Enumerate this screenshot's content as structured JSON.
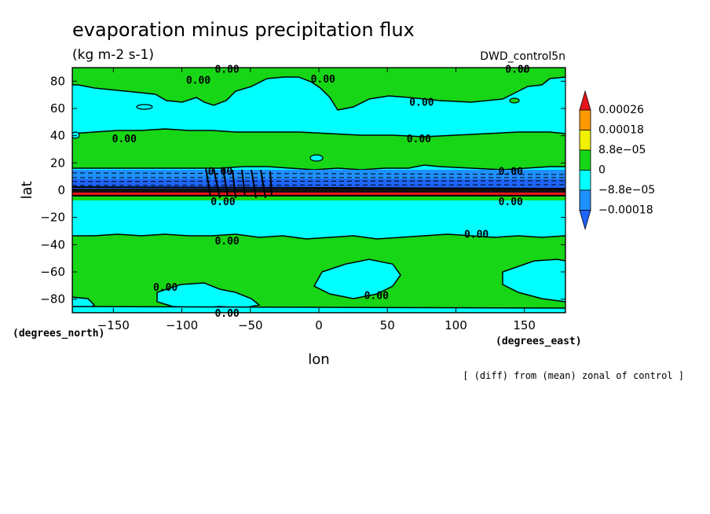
{
  "chart_data": {
    "type": "contour",
    "title": "evaporation minus precipitation flux",
    "units": "(kg m-2 s-1)",
    "dataset": "DWD_control5n",
    "xlabel": "lon",
    "ylabel": "lat",
    "x_units": "(degrees_east)",
    "y_units": "(degrees_north)",
    "xlim": [
      -180,
      180
    ],
    "ylim": [
      -90,
      90
    ],
    "xticks": [
      -150,
      -100,
      -50,
      0,
      50,
      100,
      150
    ],
    "yticks": [
      80,
      60,
      40,
      20,
      0,
      -20,
      -40,
      -60,
      -80
    ],
    "note": "[ (diff) from (mean) zonal of control ]",
    "contour_label": "0.00",
    "contour_label_positions": [
      {
        "lon": -67,
        "lat": 89
      },
      {
        "lon": -88,
        "lat": 81
      },
      {
        "lon": 3,
        "lat": 82
      },
      {
        "lon": 145,
        "lat": 89
      },
      {
        "lon": 75,
        "lat": 65
      },
      {
        "lon": -142,
        "lat": 38
      },
      {
        "lon": 73,
        "lat": 38
      },
      {
        "lon": -72,
        "lat": 14
      },
      {
        "lon": 140,
        "lat": 14
      },
      {
        "lon": -70,
        "lat": -8
      },
      {
        "lon": 140,
        "lat": -8
      },
      {
        "lon": 115,
        "lat": -32
      },
      {
        "lon": -67,
        "lat": -37
      },
      {
        "lon": -112,
        "lat": -71
      },
      {
        "lon": 42,
        "lat": -77
      },
      {
        "lon": -67,
        "lat": -90
      }
    ],
    "bands": [
      {
        "lat_from": 90,
        "lat_to": 15,
        "level": "0 to 8.8e-05 (mostly)"
      },
      {
        "lat_from": 15,
        "lat_to": 6,
        "level": "-8.8e-05 to 0"
      },
      {
        "lat_from": 6,
        "lat_to": -3,
        "level": "below -0.00018 / strong dipole"
      },
      {
        "lat_from": -3,
        "lat_to": -32,
        "level": "-8.8e-05 to 0"
      },
      {
        "lat_from": -32,
        "lat_to": -90,
        "level": "0 to 8.8e-05 (mostly)"
      }
    ],
    "colorbar": {
      "levels": [
        "0.00026",
        "0.00018",
        "8.8e-05",
        "0",
        "-8.8e-05",
        "-0.00018"
      ],
      "colors": [
        "#e8141b",
        "#ff9900",
        "#f0f000",
        "#16d616",
        "#00ffff",
        "#1e90ff",
        "#1e64ff"
      ]
    }
  }
}
